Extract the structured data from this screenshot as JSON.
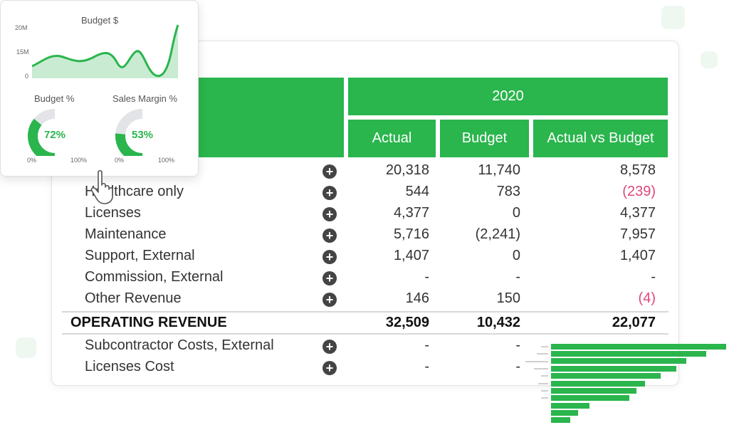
{
  "table": {
    "year": "2020",
    "columns": [
      "Actual",
      "Budget",
      "Actual vs Budget"
    ],
    "rows": [
      {
        "label": "",
        "actual": "20,318",
        "budget": "11,740",
        "variance": "8,578"
      },
      {
        "label": "Healthcare only",
        "actual": "544",
        "budget": "783",
        "variance": "(239)"
      },
      {
        "label": "Licenses",
        "actual": "4,377",
        "budget": "0",
        "variance": "4,377"
      },
      {
        "label": "Maintenance",
        "actual": "5,716",
        "budget": "(2,241)",
        "variance": "7,957"
      },
      {
        "label": "Support, External",
        "actual": "1,407",
        "budget": "0",
        "variance": "1,407"
      },
      {
        "label": "Commission, External",
        "actual": "-",
        "budget": "-",
        "variance": "-"
      },
      {
        "label": "Other Revenue",
        "actual": "146",
        "budget": "150",
        "variance": "(4)"
      }
    ],
    "total": {
      "label": "OPERATING REVENUE",
      "actual": "32,509",
      "budget": "10,432",
      "variance": "22,077"
    },
    "cost_rows": [
      {
        "label": "Subcontractor Costs, External",
        "actual": "-",
        "budget": "-"
      },
      {
        "label": "Licenses Cost",
        "actual": "-",
        "budget": "-"
      }
    ]
  },
  "dashboard": {
    "budget_chart": {
      "title": "Budget $",
      "y_ticks": [
        "20M",
        "15M",
        "0"
      ]
    },
    "gauges": [
      {
        "title": "Budget %",
        "value": "72%",
        "fraction": 0.72,
        "min_label": "0%",
        "max_label": "100%"
      },
      {
        "title": "Sales Margin %",
        "value": "53%",
        "fraction": 0.53,
        "min_label": "0%",
        "max_label": "100%"
      }
    ]
  },
  "colors": {
    "accent": "#2ab54d",
    "negative": "#e0467c",
    "gauge_track": "#e3e4e8"
  },
  "icons": {
    "row_expand": "plus-circle-icon",
    "cursor": "hand-pointer-icon"
  }
}
